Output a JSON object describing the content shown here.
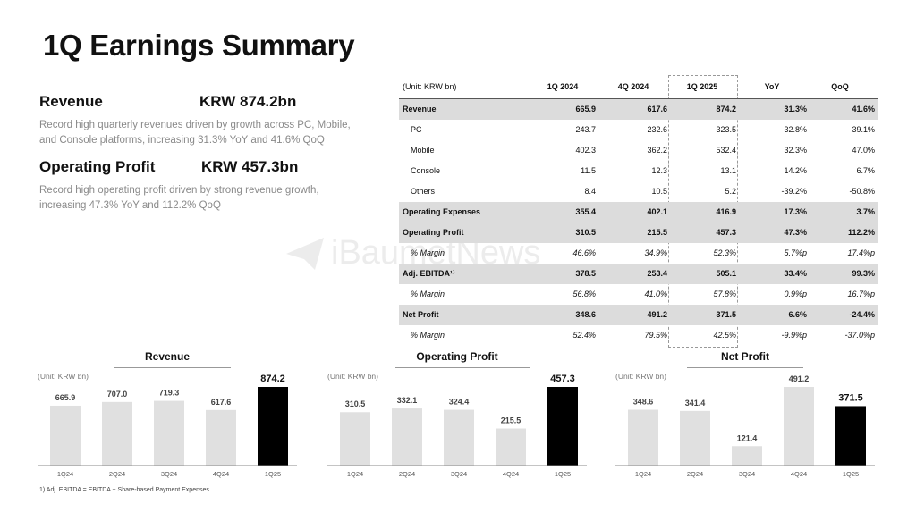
{
  "title": "1Q Earnings Summary",
  "kpis": [
    {
      "label": "Revenue",
      "value": "KRW 874.2bn",
      "desc": "Record high quarterly revenues driven by growth across PC, Mobile, and Console platforms, increasing 31.3% YoY and 41.6% QoQ"
    },
    {
      "label": "Operating Profit",
      "value": "KRW 457.3bn",
      "desc": "Record high operating profit driven by strong revenue growth, increasing 47.3% YoY and 112.2% QoQ"
    }
  ],
  "watermark": "iBaumetNews",
  "table": {
    "headers": [
      "(Unit: KRW bn)",
      "1Q 2024",
      "4Q 2024",
      "1Q 2025",
      "YoY",
      "QoQ"
    ],
    "rows": [
      {
        "type": "hl",
        "cells": [
          "Revenue",
          "665.9",
          "617.6",
          "874.2",
          "31.3%",
          "41.6%"
        ]
      },
      {
        "type": "sub",
        "cells": [
          "PC",
          "243.7",
          "232.6",
          "323.5",
          "32.8%",
          "39.1%"
        ]
      },
      {
        "type": "sub",
        "cells": [
          "Mobile",
          "402.3",
          "362.2",
          "532.4",
          "32.3%",
          "47.0%"
        ]
      },
      {
        "type": "sub",
        "cells": [
          "Console",
          "11.5",
          "12.3",
          "13.1",
          "14.2%",
          "6.7%"
        ]
      },
      {
        "type": "sub",
        "cells": [
          "Others",
          "8.4",
          "10.5",
          "5.2",
          "-39.2%",
          "-50.8%"
        ]
      },
      {
        "type": "hl",
        "cells": [
          "Operating Expenses",
          "355.4",
          "402.1",
          "416.9",
          "17.3%",
          "3.7%"
        ]
      },
      {
        "type": "hl",
        "cells": [
          "Operating Profit",
          "310.5",
          "215.5",
          "457.3",
          "47.3%",
          "112.2%"
        ]
      },
      {
        "type": "margin",
        "cells": [
          "% Margin",
          "46.6%",
          "34.9%",
          "52.3%",
          "5.7%p",
          "17.4%p"
        ]
      },
      {
        "type": "hl",
        "cells": [
          "Adj. EBITDA¹⁾",
          "378.5",
          "253.4",
          "505.1",
          "33.4%",
          "99.3%"
        ]
      },
      {
        "type": "margin",
        "cells": [
          "% Margin",
          "56.8%",
          "41.0%",
          "57.8%",
          "0.9%p",
          "16.7%p"
        ]
      },
      {
        "type": "hl",
        "cells": [
          "Net Profit",
          "348.6",
          "491.2",
          "371.5",
          "6.6%",
          "-24.4%"
        ]
      },
      {
        "type": "margin",
        "cells": [
          "% Margin",
          "52.4%",
          "79.5%",
          "42.5%",
          "-9.9%p",
          "-37.0%p"
        ]
      }
    ]
  },
  "chart_data": [
    {
      "type": "bar",
      "title": "Revenue",
      "unit": "(Unit: KRW bn)",
      "categories": [
        "1Q24",
        "2Q24",
        "3Q24",
        "4Q24",
        "1Q25"
      ],
      "values": [
        665.9,
        707.0,
        719.3,
        617.6,
        874.2
      ],
      "labels": [
        "665.9",
        "707.0",
        "719.3",
        "617.6",
        "874.2"
      ],
      "ylim": [
        0,
        874.2
      ],
      "highlight_index": 4,
      "colors": {
        "bar": "#e0e0e0",
        "highlight": "#000000"
      }
    },
    {
      "type": "bar",
      "title": "Operating Profit",
      "unit": "(Unit: KRW bn)",
      "categories": [
        "1Q24",
        "2Q24",
        "3Q24",
        "4Q24",
        "1Q25"
      ],
      "values": [
        310.5,
        332.1,
        324.4,
        215.5,
        457.3
      ],
      "labels": [
        "310.5",
        "332.1",
        "324.4",
        "215.5",
        "457.3"
      ],
      "ylim": [
        0,
        457.3
      ],
      "highlight_index": 4,
      "colors": {
        "bar": "#e0e0e0",
        "highlight": "#000000"
      }
    },
    {
      "type": "bar",
      "title": "Net Profit",
      "unit": "(Unit: KRW bn)",
      "categories": [
        "1Q24",
        "2Q24",
        "3Q24",
        "4Q24",
        "1Q25"
      ],
      "values": [
        348.6,
        341.4,
        121.4,
        491.2,
        371.5
      ],
      "labels": [
        "348.6",
        "341.4",
        "121.4",
        "491.2",
        "371.5"
      ],
      "ylim": [
        0,
        491.2
      ],
      "highlight_index": 4,
      "colors": {
        "bar": "#e0e0e0",
        "highlight": "#000000"
      }
    }
  ],
  "footnote": "1) Adj. EBITDA = EBITDA + Share-based Payment Expenses"
}
